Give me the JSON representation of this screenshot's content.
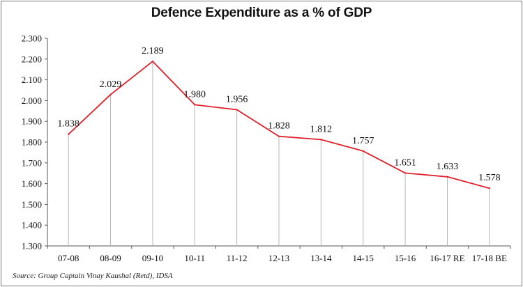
{
  "chart_data": {
    "type": "line",
    "title": "Defence Expenditure as a % of GDP",
    "categories": [
      "07-08",
      "08-09",
      "09-10",
      "10-11",
      "11-12",
      "12-13",
      "13-14",
      "14-15",
      "15-16",
      "16-17 RE",
      "17-18 BE"
    ],
    "series": [
      {
        "values": [
          1.838,
          2.029,
          2.189,
          1.98,
          1.956,
          1.828,
          1.812,
          1.757,
          1.651,
          1.633,
          1.578
        ],
        "labels": [
          "1.838",
          "2.029",
          "2.189",
          "1.980",
          "1.956",
          "1.828",
          "1.812",
          "1.757",
          "1.651",
          "1.633",
          "1.578"
        ],
        "color": "#e0202a"
      }
    ],
    "ylim": [
      1.3,
      2.3
    ],
    "yticks": [
      "1.300",
      "1.400",
      "1.500",
      "1.600",
      "1.700",
      "1.800",
      "1.900",
      "2.000",
      "2.100",
      "2.200",
      "2.300"
    ],
    "grid": "vertical drop lines only",
    "xlabel": "",
    "ylabel": ""
  },
  "source": "Source: Group Captain Vinay Kaushal (Retd), IDSA"
}
